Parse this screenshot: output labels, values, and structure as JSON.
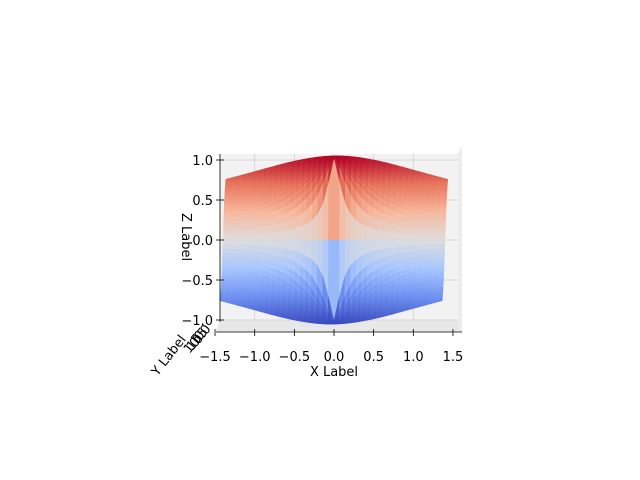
{
  "chart_data": {
    "type": "surface3d",
    "title": "",
    "xlabel": "X Label",
    "ylabel": "Y Label",
    "zlabel": "Z Label",
    "xlim": [
      -1.5,
      1.5
    ],
    "zlim": [
      -1.0,
      1.0
    ],
    "x_ticks": [
      "−1.5",
      "−1.0",
      "−0.5",
      "0.0",
      "0.5",
      "1.0",
      "1.5"
    ],
    "x_tick_values": [
      -1.5,
      -1.0,
      -0.5,
      0.0,
      0.5,
      1.0,
      1.5
    ],
    "z_ticks": [
      "−1.0",
      "−0.5",
      "0.0",
      "0.5",
      "1.0"
    ],
    "z_tick_values": [
      -1.0,
      -0.5,
      0.0,
      0.5,
      1.0
    ],
    "y_ticks_overlapping": [
      "1.5",
      "1.0",
      "0.5",
      "0.0"
    ],
    "colormap": "coolwarm",
    "colormap_colors": [
      "#3b4cc0",
      "#6f92f3",
      "#aac7fd",
      "#dddddd",
      "#f7b89c",
      "#e7745b",
      "#b40426"
    ],
    "surface": "z = sin(atan2(y, x)) over x, y in [-1.4, 1.4]",
    "grid": true,
    "view": "front elevation, camera looking along the y-axis"
  }
}
